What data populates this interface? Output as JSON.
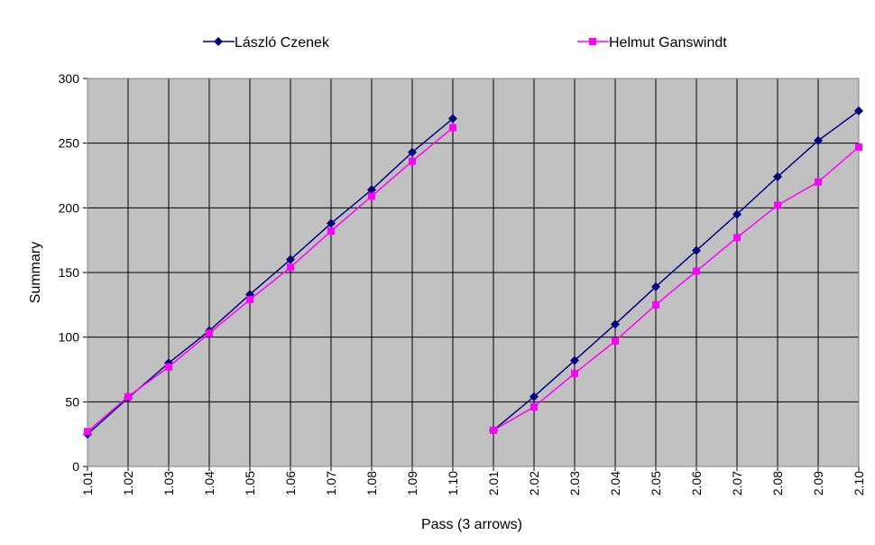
{
  "chart_data": {
    "type": "line",
    "x_label": "Pass (3 arrows)",
    "y_label": "Summary",
    "categories": [
      "1.01",
      "1.02",
      "1.03",
      "1.04",
      "1.05",
      "1.06",
      "1.07",
      "1.08",
      "1.09",
      "1.10",
      "2.01",
      "2.02",
      "2.03",
      "2.04",
      "2.05",
      "2.06",
      "2.07",
      "2.08",
      "2.09",
      "2.10"
    ],
    "series": [
      {
        "name": "László Czenek",
        "color": "#000080",
        "marker": "diamond",
        "values": [
          25,
          53,
          80,
          105,
          133,
          160,
          188,
          214,
          243,
          269,
          28,
          54,
          82,
          110,
          139,
          167,
          195,
          224,
          252,
          275
        ]
      },
      {
        "name": "Helmut Ganswindt",
        "color": "#ff00ff",
        "marker": "square",
        "values": [
          27,
          54,
          77,
          103,
          129,
          154,
          182,
          209,
          236,
          262,
          28,
          46,
          72,
          97,
          125,
          151,
          177,
          202,
          220,
          247
        ]
      }
    ],
    "ylim": [
      0,
      300
    ],
    "yticks": [
      0,
      50,
      100,
      150,
      200,
      250,
      300
    ],
    "grid": true,
    "plot_background": "#c0c0c0",
    "legend": "top"
  }
}
